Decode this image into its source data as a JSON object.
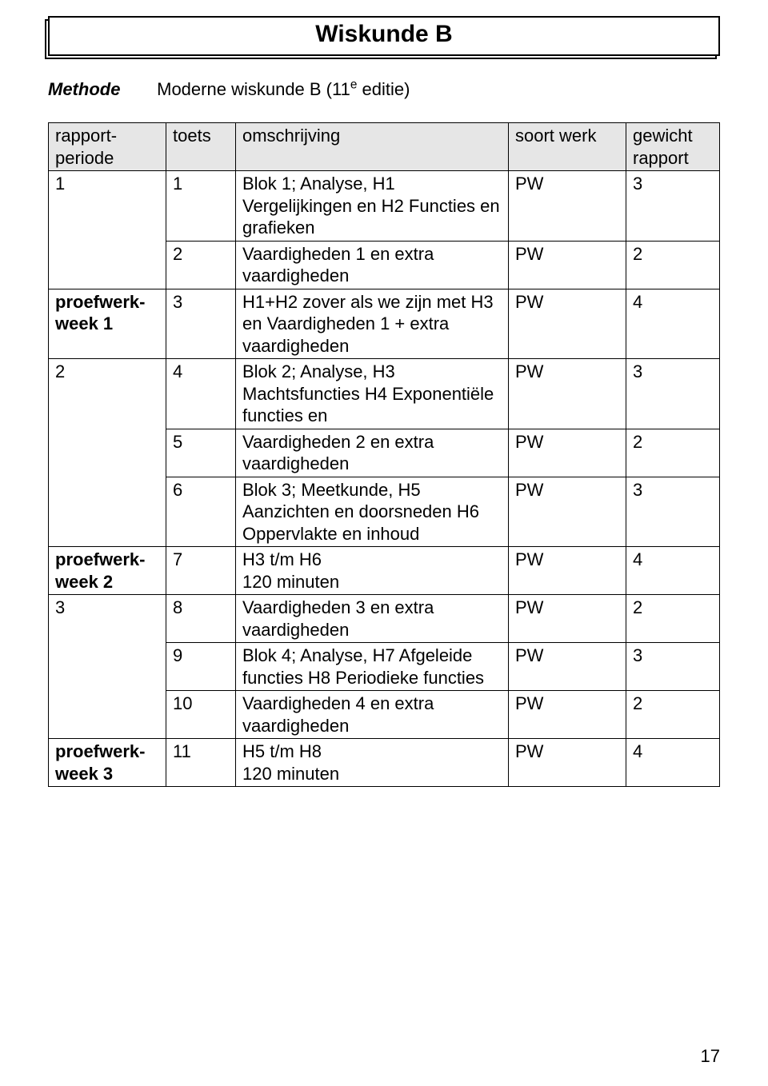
{
  "title": "Wiskunde B",
  "method_label": "Methode",
  "method_value_prefix": "Moderne wiskunde B  (11",
  "method_value_sup": "e",
  "method_value_suffix": " editie)",
  "headers": {
    "periode": "rapport-periode",
    "toets": "toets",
    "omschrijving": "omschrijving",
    "soort": "soort werk",
    "gewicht": "gewicht rapport"
  },
  "rows": [
    {
      "periode": "1",
      "periode_bold": false,
      "periode_rowspan": 2,
      "toets": "1",
      "omschrijving": "Blok 1; Analyse, H1 Vergelijkingen en H2 Functies en grafieken",
      "soort": "PW",
      "gewicht": "3"
    },
    {
      "toets": "2",
      "omschrijving": "Vaardigheden 1 en extra vaardigheden",
      "soort": "PW",
      "gewicht": "2"
    },
    {
      "periode": "proefwerk-week 1",
      "periode_bold": true,
      "periode_rowspan": 1,
      "toets": "3",
      "omschrijving": "H1+H2 zover als we zijn met H3 en Vaardigheden 1 + extra vaardigheden",
      "soort": "PW",
      "gewicht": "4"
    },
    {
      "periode": "2",
      "periode_bold": false,
      "periode_rowspan": 3,
      "toets": "4",
      "omschrijving": "Blok 2; Analyse,  H3 Machtsfuncties H4 Exponentiële functies en",
      "soort": "PW",
      "gewicht": "3"
    },
    {
      "toets": "5",
      "omschrijving": "Vaardigheden 2 en extra vaardigheden",
      "soort": "PW",
      "gewicht": "2"
    },
    {
      "toets": "6",
      "omschrijving": "Blok 3; Meetkunde, H5 Aanzichten en doorsneden H6 Oppervlakte en inhoud",
      "soort": "PW",
      "gewicht": "3"
    },
    {
      "periode": "proefwerk-week 2",
      "periode_bold": true,
      "periode_rowspan": 1,
      "toets": "7",
      "omschrijving": "H3 t/m H6\n120 minuten",
      "soort": "PW",
      "gewicht": "4"
    },
    {
      "periode": "3",
      "periode_bold": false,
      "periode_rowspan": 3,
      "toets": "8",
      "omschrijving": "Vaardigheden 3 en extra vaardigheden",
      "soort": "PW",
      "gewicht": "2"
    },
    {
      "toets": "9",
      "omschrijving": "Blok 4; Analyse, H7 Afgeleide functies H8 Periodieke functies",
      "soort": "PW",
      "gewicht": "3"
    },
    {
      "toets": "10",
      "omschrijving": "Vaardigheden 4 en extra vaardigheden",
      "soort": "PW",
      "gewicht": "2"
    },
    {
      "periode": "proefwerk-week 3",
      "periode_bold": true,
      "periode_rowspan": 1,
      "toets": "11",
      "omschrijving": "H5 t/m H8\n120 minuten",
      "soort": "PW",
      "gewicht": "4"
    }
  ],
  "page_number": "17"
}
